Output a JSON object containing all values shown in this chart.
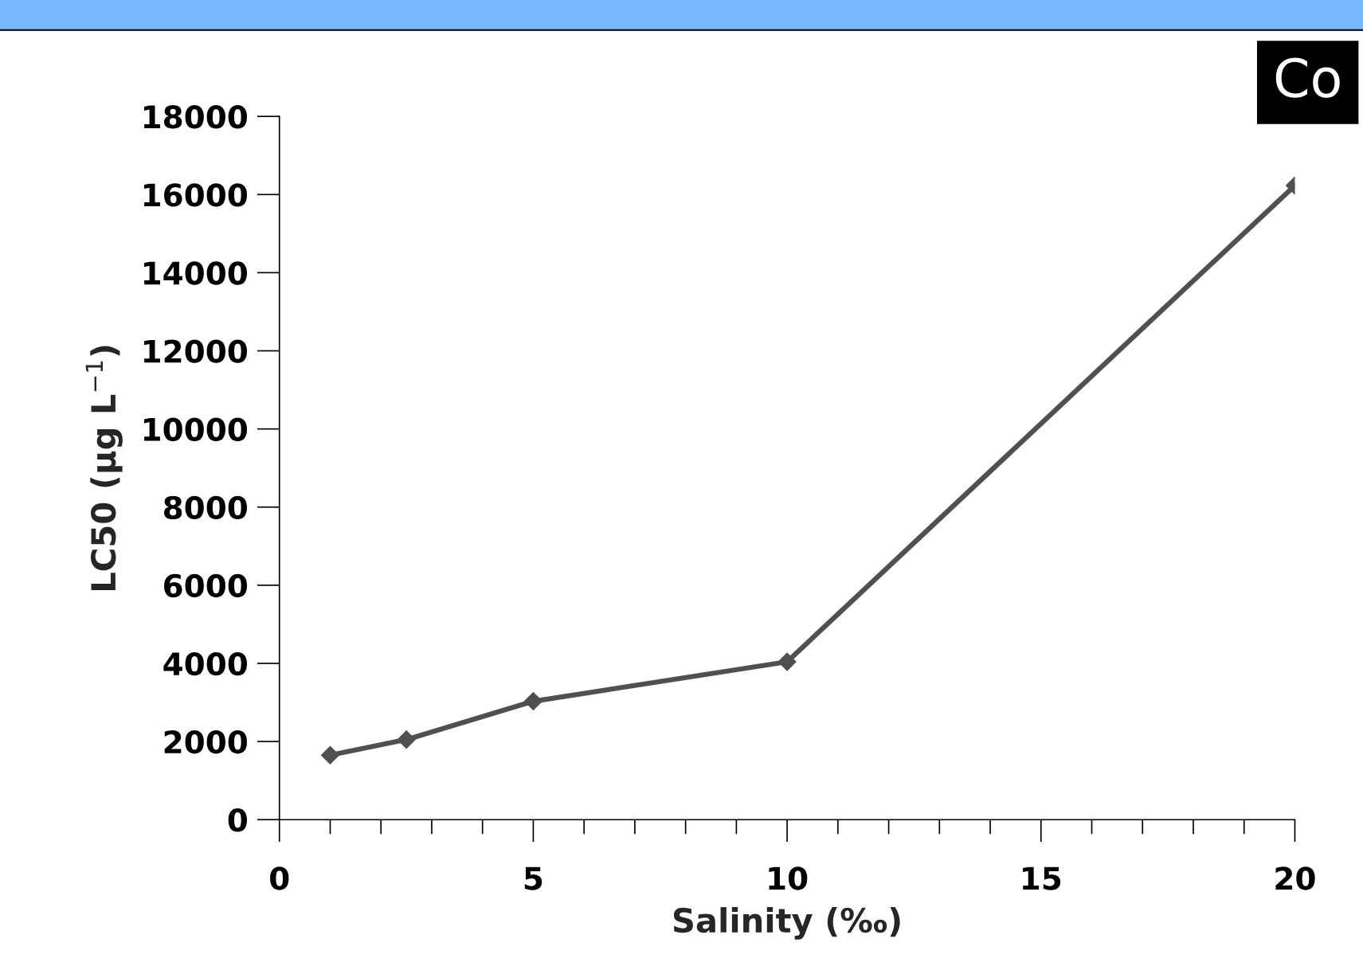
{
  "chart_data": {
    "type": "line",
    "xlabel": "Salinity (‰)",
    "ylabel": "LC50 (µg L$^{−1}$)",
    "annotations": [
      "Co"
    ],
    "series": [
      {
        "color": "#505050",
        "x": [
          1,
          2.5,
          5,
          10,
          20
        ],
        "values": [
          1650,
          2050,
          3030,
          4040,
          16230
        ]
      }
    ],
    "xlim": [
      0,
      20
    ],
    "xticks": [
      0,
      5,
      10,
      15,
      20
    ],
    "ylim": [
      0,
      18000
    ],
    "yticks": [
      0,
      2000,
      4000,
      6000,
      8000,
      10000,
      12000,
      14000,
      16000,
      18000
    ],
    "grid": false,
    "legend": false,
    "marker": "diamond",
    "line_style": "solid"
  }
}
